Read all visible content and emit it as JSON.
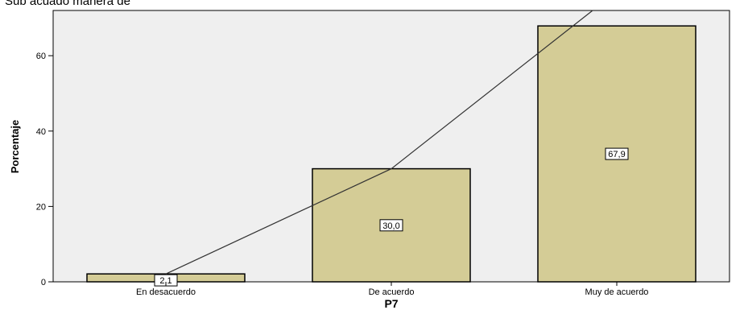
{
  "page_title_partial": "Sub   acuado   manera de",
  "chart_data": {
    "type": "bar",
    "categories": [
      "En desacuerdo",
      "De acuerdo",
      "Muy de acuerdo"
    ],
    "values": [
      2.1,
      30.0,
      67.9
    ],
    "data_labels": [
      "2,1",
      "30,0",
      "67,9"
    ],
    "cumulative_line": true,
    "xlabel": "P7",
    "ylabel": "Porcentaje",
    "ylim": [
      0,
      72
    ],
    "yticks": [
      0,
      20,
      40,
      60
    ],
    "ytick_labels": [
      "0",
      "20",
      "40",
      "60"
    ],
    "grid": false,
    "colors": {
      "bar_fill": "#d4cc96",
      "bar_stroke": "#000000",
      "plot_bg": "#efefef",
      "line": "#333333"
    }
  }
}
